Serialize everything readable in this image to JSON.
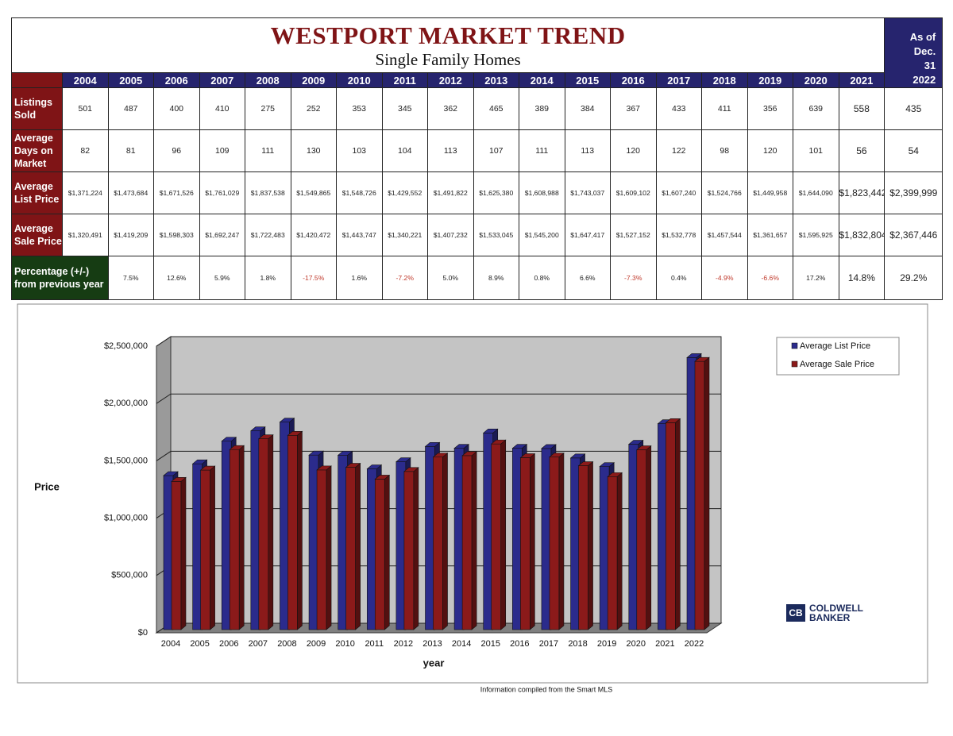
{
  "header": {
    "title": "WESTPORT MARKET TREND",
    "subtitle": "Single Family Homes",
    "as_of": "As of Dec. 31",
    "years": [
      "2004",
      "2005",
      "2006",
      "2007",
      "2008",
      "2009",
      "2010",
      "2011",
      "2012",
      "2013",
      "2014",
      "2015",
      "2016",
      "2017",
      "2018",
      "2019",
      "2020",
      "2021",
      "2022"
    ]
  },
  "table": {
    "rows": [
      {
        "label": "Listings Sold",
        "cells": [
          "501",
          "487",
          "400",
          "410",
          "275",
          "252",
          "353",
          "345",
          "362",
          "465",
          "389",
          "384",
          "367",
          "433",
          "411",
          "356",
          "639",
          "558",
          "435"
        ]
      },
      {
        "label": "Average Days on Market",
        "cells": [
          "82",
          "81",
          "96",
          "109",
          "111",
          "130",
          "103",
          "104",
          "113",
          "107",
          "111",
          "113",
          "120",
          "122",
          "98",
          "120",
          "101",
          "56",
          "54"
        ]
      },
      {
        "label": "Average List Price",
        "cells": [
          "$1,371,224",
          "$1,473,684",
          "$1,671,526",
          "$1,761,029",
          "$1,837,538",
          "$1,549,865",
          "$1,548,726",
          "$1,429,552",
          "$1,491,822",
          "$1,625,380",
          "$1,608,988",
          "$1,743,037",
          "$1,609,102",
          "$1,607,240",
          "$1,524,766",
          "$1,449,958",
          "$1,644,090",
          "$1,823,442",
          "$2,399,999"
        ]
      },
      {
        "label": "Average Sale Price",
        "cells": [
          "$1,320,491",
          "$1,419,209",
          "$1,598,303",
          "$1,692,247",
          "$1,722,483",
          "$1,420,472",
          "$1,443,747",
          "$1,340,221",
          "$1,407,232",
          "$1,533,045",
          "$1,545,200",
          "$1,647,417",
          "$1,527,152",
          "$1,532,778",
          "$1,457,544",
          "$1,361,657",
          "$1,595,925",
          "$1,832,804",
          "$2,367,446"
        ]
      },
      {
        "label": "Percentage (+/-) from previous year",
        "cells": [
          "7.5%",
          "12.6%",
          "5.9%",
          "1.8%",
          "-17.5%",
          "1.6%",
          "-7.2%",
          "5.0%",
          "8.9%",
          "0.8%",
          "6.6%",
          "-7.3%",
          "0.4%",
          "-4.9%",
          "-6.6%",
          "17.2%",
          "14.8%",
          "29.2%"
        ]
      }
    ]
  },
  "chart_data": {
    "type": "bar3d",
    "y_label": "Price",
    "x_label": "year",
    "categories": [
      "2004",
      "2005",
      "2006",
      "2007",
      "2008",
      "2009",
      "2010",
      "2011",
      "2012",
      "2013",
      "2014",
      "2015",
      "2016",
      "2017",
      "2018",
      "2019",
      "2020",
      "2021",
      "2022"
    ],
    "series": [
      {
        "name": "Average List Price",
        "color": "#2b2b8c",
        "values": [
          1371224,
          1473684,
          1671526,
          1761029,
          1837538,
          1549865,
          1548726,
          1429552,
          1491822,
          1625380,
          1608988,
          1743037,
          1609102,
          1607240,
          1524766,
          1449958,
          1644090,
          1823442,
          2399999
        ]
      },
      {
        "name": "Average Sale Price",
        "color": "#8b1a1a",
        "values": [
          1320491,
          1419209,
          1598303,
          1692247,
          1722483,
          1420472,
          1443747,
          1340221,
          1407232,
          1533045,
          1545200,
          1647417,
          1527152,
          1532778,
          1457544,
          1361657,
          1595925,
          1832804,
          2367446
        ]
      }
    ],
    "ylim": [
      0,
      2500000
    ],
    "yticks": [
      {
        "value": 0,
        "label": "$0"
      },
      {
        "value": 500000,
        "label": "$500,000"
      },
      {
        "value": 1000000,
        "label": "$1,000,000"
      },
      {
        "value": 1500000,
        "label": "$1,500,000"
      },
      {
        "value": 2000000,
        "label": "$2,000,000"
      },
      {
        "value": 2500000,
        "label": "$2,500,000"
      }
    ],
    "grid": true
  },
  "footnote": "Information compiled from the Smart MLS",
  "logo": {
    "line1": "COLDWELL",
    "line2": "BANKER"
  }
}
